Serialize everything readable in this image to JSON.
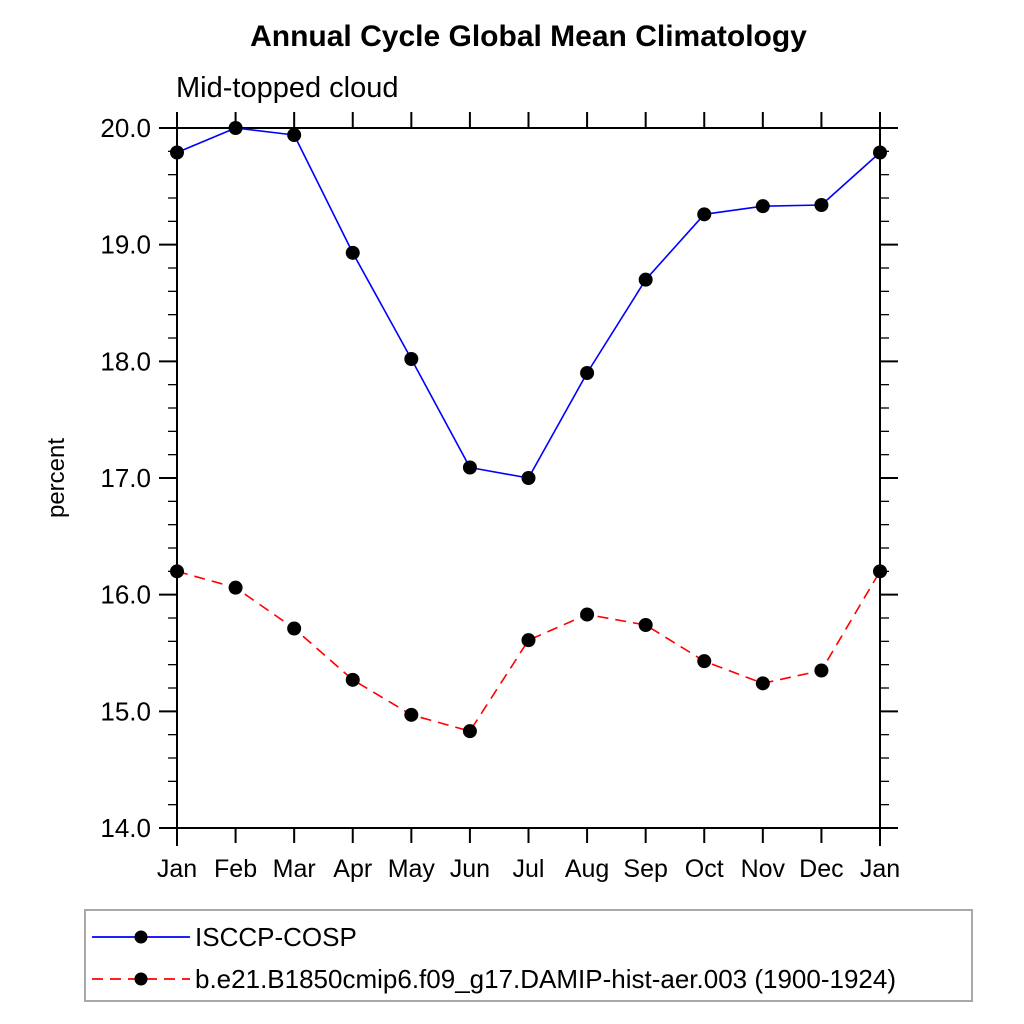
{
  "chart_data": {
    "type": "line",
    "title": "Annual Cycle Global Mean Climatology",
    "subtitle": "Mid-topped cloud",
    "xlabel": "",
    "ylabel": "percent",
    "categories": [
      "Jan",
      "Feb",
      "Mar",
      "Apr",
      "May",
      "Jun",
      "Jul",
      "Aug",
      "Sep",
      "Oct",
      "Nov",
      "Dec",
      "Jan"
    ],
    "series": [
      {
        "name": "ISCCP-COSP",
        "color": "#0000ff",
        "line_style": "solid",
        "marker": "filled-circle",
        "marker_color": "#000000",
        "values": [
          19.79,
          20.0,
          19.94,
          18.93,
          18.02,
          17.09,
          17.0,
          17.9,
          18.7,
          19.26,
          19.33,
          19.34,
          19.79
        ]
      },
      {
        "name": "b.e21.B1850cmip6.f09_g17.DAMIP-hist-aer.003 (1900-1924)",
        "color": "#ff0000",
        "line_style": "dashed",
        "marker": "filled-circle",
        "marker_color": "#000000",
        "values": [
          16.2,
          16.06,
          15.71,
          15.27,
          14.97,
          14.83,
          15.61,
          15.83,
          15.74,
          15.43,
          15.24,
          15.35,
          16.2
        ]
      }
    ],
    "ylim": [
      14.0,
      20.0
    ],
    "ytick_interval": 1.0,
    "yminor_interval": 0.2,
    "ytick_labels": [
      "14.0",
      "15.0",
      "16.0",
      "17.0",
      "18.0",
      "19.0",
      "20.0"
    ],
    "grid": false,
    "axis_color": "#000000",
    "legend_position": "bottom-left"
  }
}
